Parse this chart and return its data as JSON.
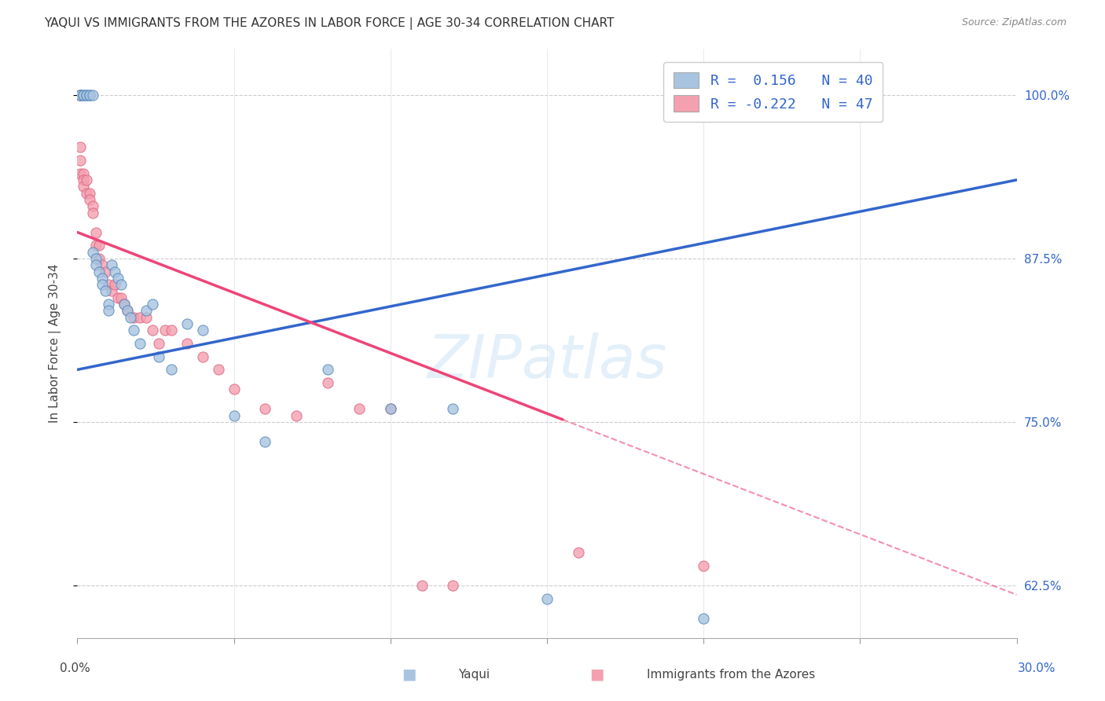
{
  "title": "YAQUI VS IMMIGRANTS FROM THE AZORES IN LABOR FORCE | AGE 30-34 CORRELATION CHART",
  "source": "Source: ZipAtlas.com",
  "ylabel": "In Labor Force | Age 30-34",
  "yticks": [
    0.625,
    0.75,
    0.875,
    1.0
  ],
  "ytick_labels": [
    "62.5%",
    "75.0%",
    "87.5%",
    "100.0%"
  ],
  "xmin": 0.0,
  "xmax": 0.3,
  "ymin": 0.585,
  "ymax": 1.035,
  "blue_color": "#a8c4e0",
  "pink_color": "#f4a0b0",
  "blue_edge_color": "#5588bb",
  "pink_edge_color": "#dd6680",
  "blue_line_color": "#3366cc",
  "pink_line_color": "#ee4477",
  "right_axis_color": "#3366cc",
  "watermark": "ZIPatlas",
  "blue_scatter_x": [
    0.001,
    0.001,
    0.002,
    0.002,
    0.003,
    0.003,
    0.004,
    0.004,
    0.005,
    0.005,
    0.006,
    0.006,
    0.007,
    0.008,
    0.008,
    0.009,
    0.01,
    0.01,
    0.011,
    0.012,
    0.013,
    0.014,
    0.015,
    0.016,
    0.017,
    0.018,
    0.02,
    0.022,
    0.024,
    0.026,
    0.03,
    0.035,
    0.04,
    0.05,
    0.06,
    0.08,
    0.1,
    0.12,
    0.15,
    0.2
  ],
  "blue_scatter_y": [
    1.0,
    1.0,
    1.0,
    1.0,
    1.0,
    1.0,
    1.0,
    1.0,
    1.0,
    0.88,
    0.875,
    0.87,
    0.865,
    0.86,
    0.855,
    0.85,
    0.84,
    0.835,
    0.87,
    0.865,
    0.86,
    0.855,
    0.84,
    0.835,
    0.83,
    0.82,
    0.81,
    0.835,
    0.84,
    0.8,
    0.79,
    0.825,
    0.82,
    0.755,
    0.735,
    0.79,
    0.76,
    0.76,
    0.615,
    0.6
  ],
  "pink_scatter_x": [
    0.001,
    0.001,
    0.001,
    0.001,
    0.001,
    0.002,
    0.002,
    0.002,
    0.003,
    0.003,
    0.004,
    0.004,
    0.005,
    0.005,
    0.006,
    0.006,
    0.007,
    0.007,
    0.008,
    0.009,
    0.01,
    0.011,
    0.012,
    0.013,
    0.014,
    0.015,
    0.016,
    0.018,
    0.02,
    0.022,
    0.024,
    0.026,
    0.028,
    0.03,
    0.035,
    0.04,
    0.045,
    0.05,
    0.06,
    0.07,
    0.08,
    0.09,
    0.1,
    0.11,
    0.12,
    0.16,
    0.2
  ],
  "pink_scatter_y": [
    1.0,
    1.0,
    0.96,
    0.95,
    0.94,
    0.94,
    0.935,
    0.93,
    0.935,
    0.925,
    0.925,
    0.92,
    0.915,
    0.91,
    0.895,
    0.885,
    0.885,
    0.875,
    0.87,
    0.865,
    0.855,
    0.85,
    0.855,
    0.845,
    0.845,
    0.84,
    0.835,
    0.83,
    0.83,
    0.83,
    0.82,
    0.81,
    0.82,
    0.82,
    0.81,
    0.8,
    0.79,
    0.775,
    0.76,
    0.755,
    0.78,
    0.76,
    0.76,
    0.625,
    0.625,
    0.65,
    0.64
  ],
  "blue_trendline_x": [
    0.0,
    0.3
  ],
  "blue_trendline_y": [
    0.79,
    0.935
  ],
  "pink_trendline_x": [
    0.0,
    0.3
  ],
  "pink_trendline_y": [
    0.895,
    0.618
  ]
}
